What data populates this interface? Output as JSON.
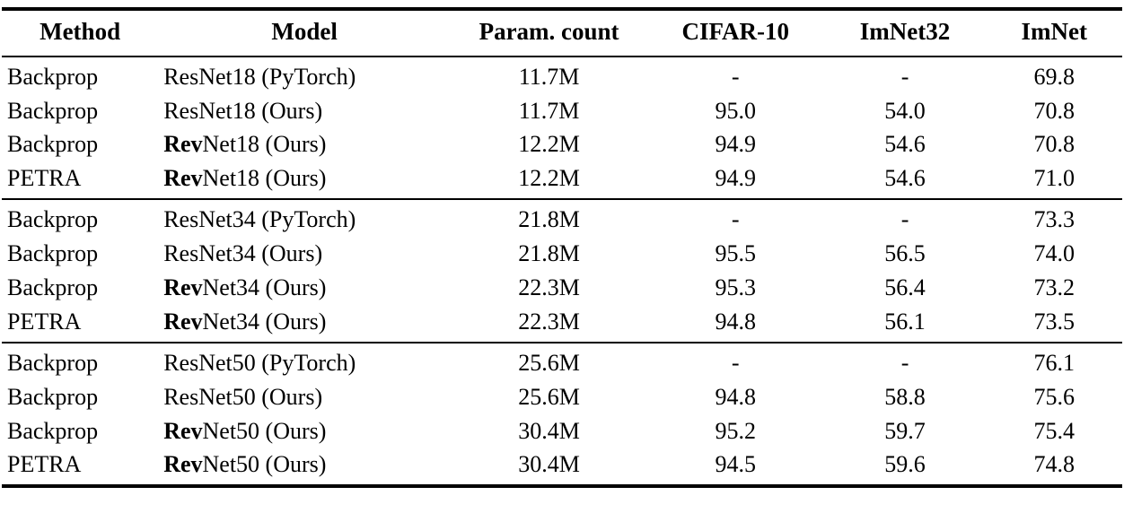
{
  "table": {
    "columns": [
      "Method",
      "Model",
      "Param. count",
      "CIFAR-10",
      "ImNet32",
      "ImNet"
    ],
    "groups": [
      {
        "rows": [
          {
            "method": "Backprop",
            "model_bold": "",
            "model_rest": "ResNet18 (PyTorch)",
            "params": "11.7M",
            "cifar10": "-",
            "imnet32": "-",
            "imnet": "69.8"
          },
          {
            "method": "Backprop",
            "model_bold": "",
            "model_rest": "ResNet18 (Ours)",
            "params": "11.7M",
            "cifar10": "95.0",
            "imnet32": "54.0",
            "imnet": "70.8"
          },
          {
            "method": "Backprop",
            "model_bold": "Rev",
            "model_rest": "Net18 (Ours)",
            "params": "12.2M",
            "cifar10": "94.9",
            "imnet32": "54.6",
            "imnet": "70.8"
          },
          {
            "method": "PETRA",
            "model_bold": "Rev",
            "model_rest": "Net18 (Ours)",
            "params": "12.2M",
            "cifar10": "94.9",
            "imnet32": "54.6",
            "imnet": "71.0"
          }
        ]
      },
      {
        "rows": [
          {
            "method": "Backprop",
            "model_bold": "",
            "model_rest": "ResNet34 (PyTorch)",
            "params": "21.8M",
            "cifar10": "-",
            "imnet32": "-",
            "imnet": "73.3"
          },
          {
            "method": "Backprop",
            "model_bold": "",
            "model_rest": "ResNet34 (Ours)",
            "params": "21.8M",
            "cifar10": "95.5",
            "imnet32": "56.5",
            "imnet": "74.0"
          },
          {
            "method": "Backprop",
            "model_bold": "Rev",
            "model_rest": "Net34 (Ours)",
            "params": "22.3M",
            "cifar10": "95.3",
            "imnet32": "56.4",
            "imnet": "73.2"
          },
          {
            "method": "PETRA",
            "model_bold": "Rev",
            "model_rest": "Net34 (Ours)",
            "params": "22.3M",
            "cifar10": "94.8",
            "imnet32": "56.1",
            "imnet": "73.5"
          }
        ]
      },
      {
        "rows": [
          {
            "method": "Backprop",
            "model_bold": "",
            "model_rest": "ResNet50 (PyTorch)",
            "params": "25.6M",
            "cifar10": "-",
            "imnet32": "-",
            "imnet": "76.1"
          },
          {
            "method": "Backprop",
            "model_bold": "",
            "model_rest": "ResNet50 (Ours)",
            "params": "25.6M",
            "cifar10": "94.8",
            "imnet32": "58.8",
            "imnet": "75.6"
          },
          {
            "method": "Backprop",
            "model_bold": "Rev",
            "model_rest": "Net50 (Ours)",
            "params": "30.4M",
            "cifar10": "95.2",
            "imnet32": "59.7",
            "imnet": "75.4"
          },
          {
            "method": "PETRA",
            "model_bold": "Rev",
            "model_rest": "Net50 (Ours)",
            "params": "30.4M",
            "cifar10": "94.5",
            "imnet32": "59.6",
            "imnet": "74.8"
          }
        ]
      }
    ]
  }
}
